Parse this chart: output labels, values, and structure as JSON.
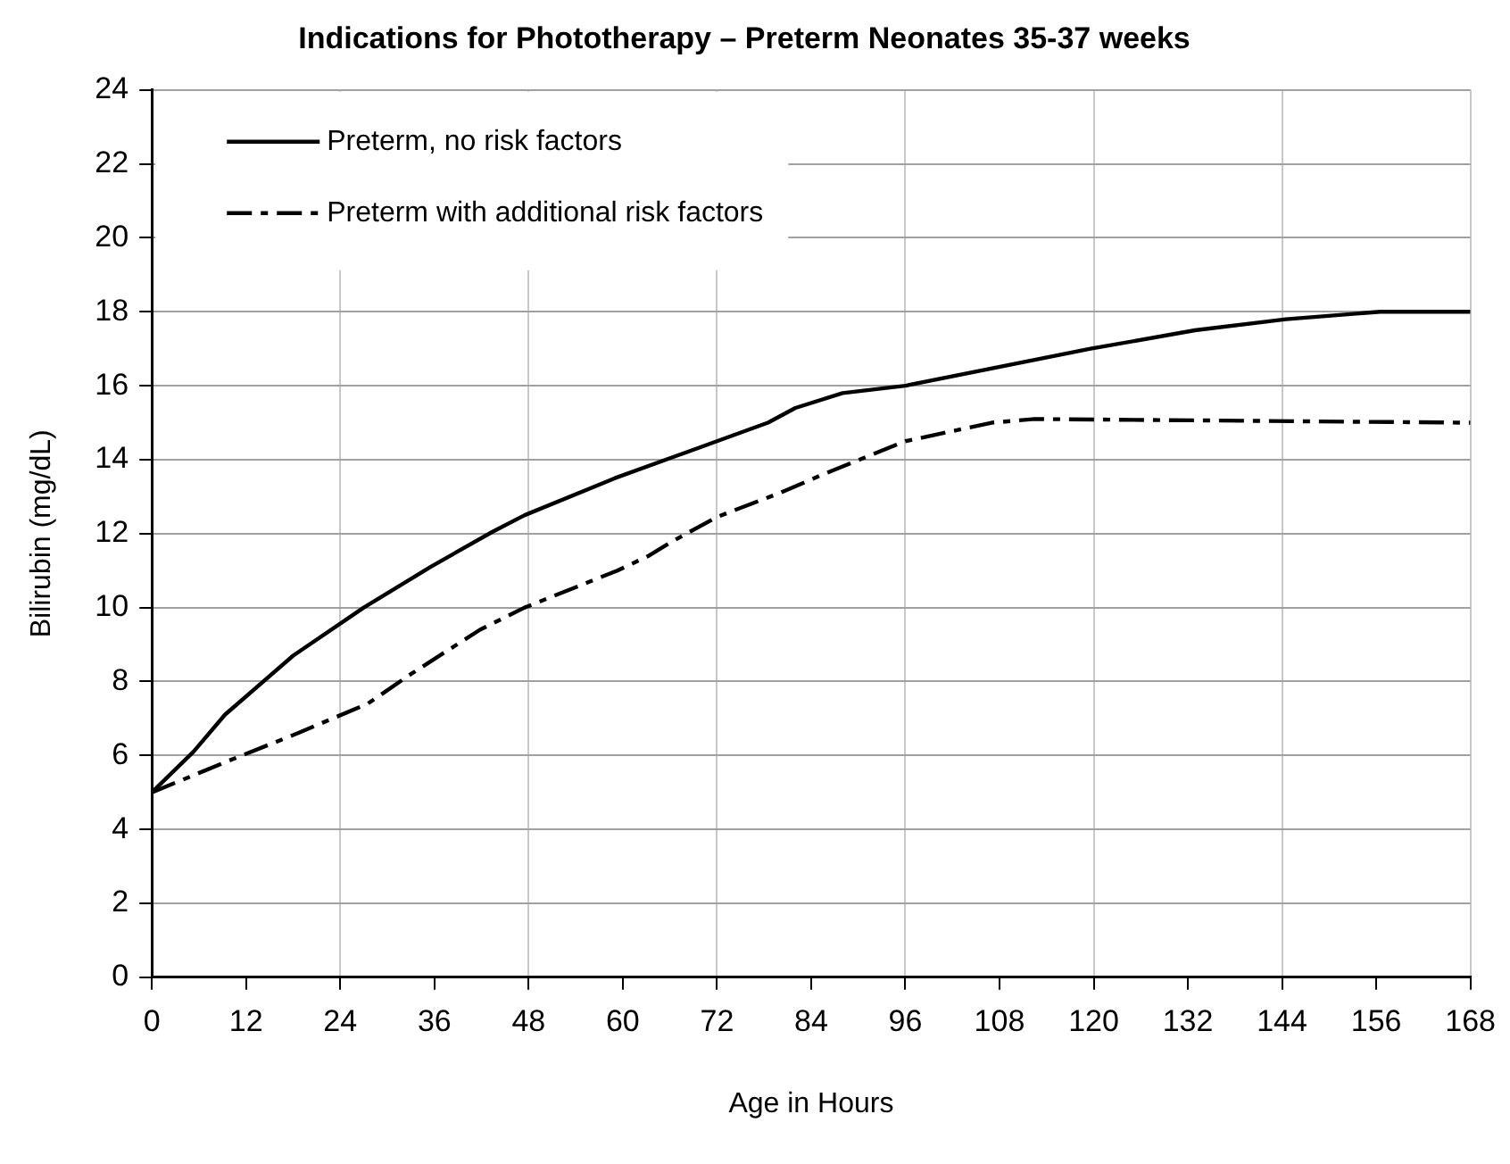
{
  "chart_data": {
    "type": "line",
    "title": "Indications for Phototherapy – Preterm Neonates 35-37 weeks",
    "xlabel": "Age in Hours",
    "ylabel": "Bilirubin (mg/dL)",
    "xlim": [
      0,
      168
    ],
    "xticks": [
      0,
      12,
      24,
      36,
      48,
      60,
      72,
      84,
      96,
      108,
      120,
      132,
      144,
      156,
      168
    ],
    "ylim": [
      0,
      24
    ],
    "yticks": [
      0,
      2,
      4,
      6,
      8,
      10,
      12,
      14,
      16,
      18,
      20,
      22,
      24
    ],
    "grid": true,
    "legend": "top left",
    "marker": "none",
    "series": [
      {
        "name": "Preterm, no risk factors",
        "color": "#000000",
        "line_style": "solid",
        "x": [
          0,
          5.3,
          9.3,
          18,
          27,
          35.5,
          43.4,
          47.5,
          59,
          72,
          78.5,
          82,
          88,
          96,
          119.6,
          132.9,
          144.5,
          156.5,
          168
        ],
        "values": [
          5,
          6.1,
          7.1,
          8.7,
          10,
          11.1,
          12.05,
          12.5,
          13.5,
          14.5,
          15,
          15.4,
          15.8,
          16,
          17,
          17.5,
          17.8,
          18,
          18
        ]
      },
      {
        "name": "Preterm with additional risk factors",
        "color": "#000000",
        "line_style": "dashed",
        "x": [
          0,
          9.7,
          18,
          27.5,
          33,
          41.8,
          47.5,
          59.3,
          63.3,
          66.4,
          72,
          80,
          85.5,
          91.3,
          96,
          107,
          112.5,
          168
        ],
        "values": [
          5,
          5.85,
          6.55,
          7.4,
          8.2,
          9.4,
          10,
          11,
          11.4,
          11.8,
          12.45,
          13.1,
          13.6,
          14.1,
          14.5,
          15,
          15.1,
          15
        ]
      }
    ]
  }
}
